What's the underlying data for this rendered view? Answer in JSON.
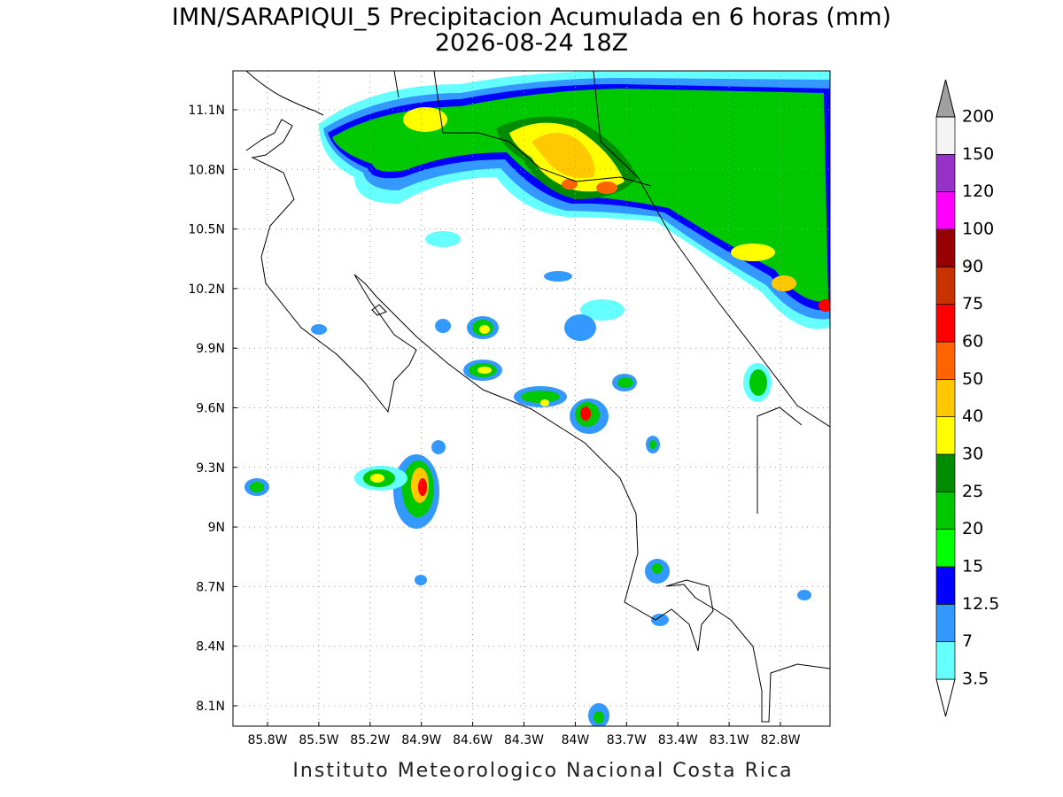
{
  "title": "IMN/SARAPIQUI_5 Precipitacion Acumulada en 6 horas (mm)",
  "subtitle": "2026-08-24 18Z",
  "footer": "Instituto Meteorologico Nacional Costa Rica",
  "lat_labels": [
    "11.1N",
    "10.8N",
    "10.5N",
    "10.2N",
    "9.9N",
    "9.6N",
    "9.3N",
    "9N",
    "8.7N",
    "8.4N",
    "8.1N"
  ],
  "lon_labels": [
    "85.8W",
    "85.5W",
    "85.2W",
    "84.9W",
    "84.6W",
    "84.3W",
    "84W",
    "83.7W",
    "83.4W",
    "83.1W",
    "82.8W"
  ],
  "colorbar": {
    "levels": [
      3.5,
      7,
      12.5,
      15,
      20,
      25,
      30,
      40,
      50,
      60,
      75,
      90,
      100,
      120,
      150,
      200
    ],
    "colors": [
      "#66ffff",
      "#3399ff",
      "#0000ff",
      "#00ff00",
      "#00c800",
      "#008c00",
      "#ffff00",
      "#ffc800",
      "#ff6400",
      "#ff0000",
      "#c83200",
      "#960000",
      "#ff00ff",
      "#9632c8",
      "#f4f4f4"
    ],
    "under_color": "#ffffff",
    "over_color": "#a0a0a0"
  }
}
